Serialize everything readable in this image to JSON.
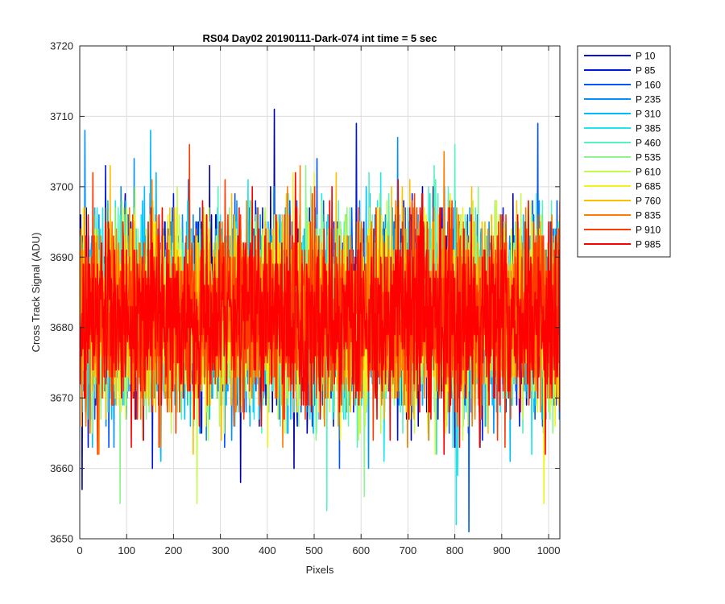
{
  "chart_data": {
    "type": "line",
    "title": "RS04 Day02 20190111-Dark-074 int time = 5 sec",
    "xlabel": "Pixels",
    "ylabel": "Cross Track Signal (ADU)",
    "xlim": [
      0,
      1024
    ],
    "ylim": [
      3650,
      3720
    ],
    "xticks": [
      0,
      100,
      200,
      300,
      400,
      500,
      600,
      700,
      800,
      900,
      1000
    ],
    "yticks": [
      3650,
      3660,
      3670,
      3680,
      3690,
      3700,
      3710,
      3720
    ],
    "grid": true,
    "legend_position": "outside-right",
    "noise_mean": 3682,
    "noise_sigma": 6.5,
    "series": [
      {
        "name": "P 10",
        "color": "#0000a6"
      },
      {
        "name": "P 85",
        "color": "#0018dc"
      },
      {
        "name": "P 160",
        "color": "#0055ff"
      },
      {
        "name": "P 235",
        "color": "#0090ff"
      },
      {
        "name": "P 310",
        "color": "#00bcff"
      },
      {
        "name": "P 385",
        "color": "#1ee6ee"
      },
      {
        "name": "P 460",
        "color": "#55f2c2"
      },
      {
        "name": "P 535",
        "color": "#8cf58f"
      },
      {
        "name": "P 610",
        "color": "#c6f94e"
      },
      {
        "name": "P 685",
        "color": "#f5f21a"
      },
      {
        "name": "P 760",
        "color": "#ffbe00"
      },
      {
        "name": "P 835",
        "color": "#ff7c00"
      },
      {
        "name": "P 910",
        "color": "#ff3c00"
      },
      {
        "name": "P 985",
        "color": "#ff0000"
      }
    ],
    "annotated_extrema": [
      {
        "x": 415,
        "y": 3711
      },
      {
        "x": 590,
        "y": 3709
      },
      {
        "x": 977,
        "y": 3709
      },
      {
        "x": 11,
        "y": 3708
      },
      {
        "x": 151,
        "y": 3708
      },
      {
        "x": 803,
        "y": 3652
      },
      {
        "x": 527,
        "y": 3654
      },
      {
        "x": 86,
        "y": 3655
      },
      {
        "x": 250,
        "y": 3655
      },
      {
        "x": 990,
        "y": 3655
      }
    ]
  }
}
